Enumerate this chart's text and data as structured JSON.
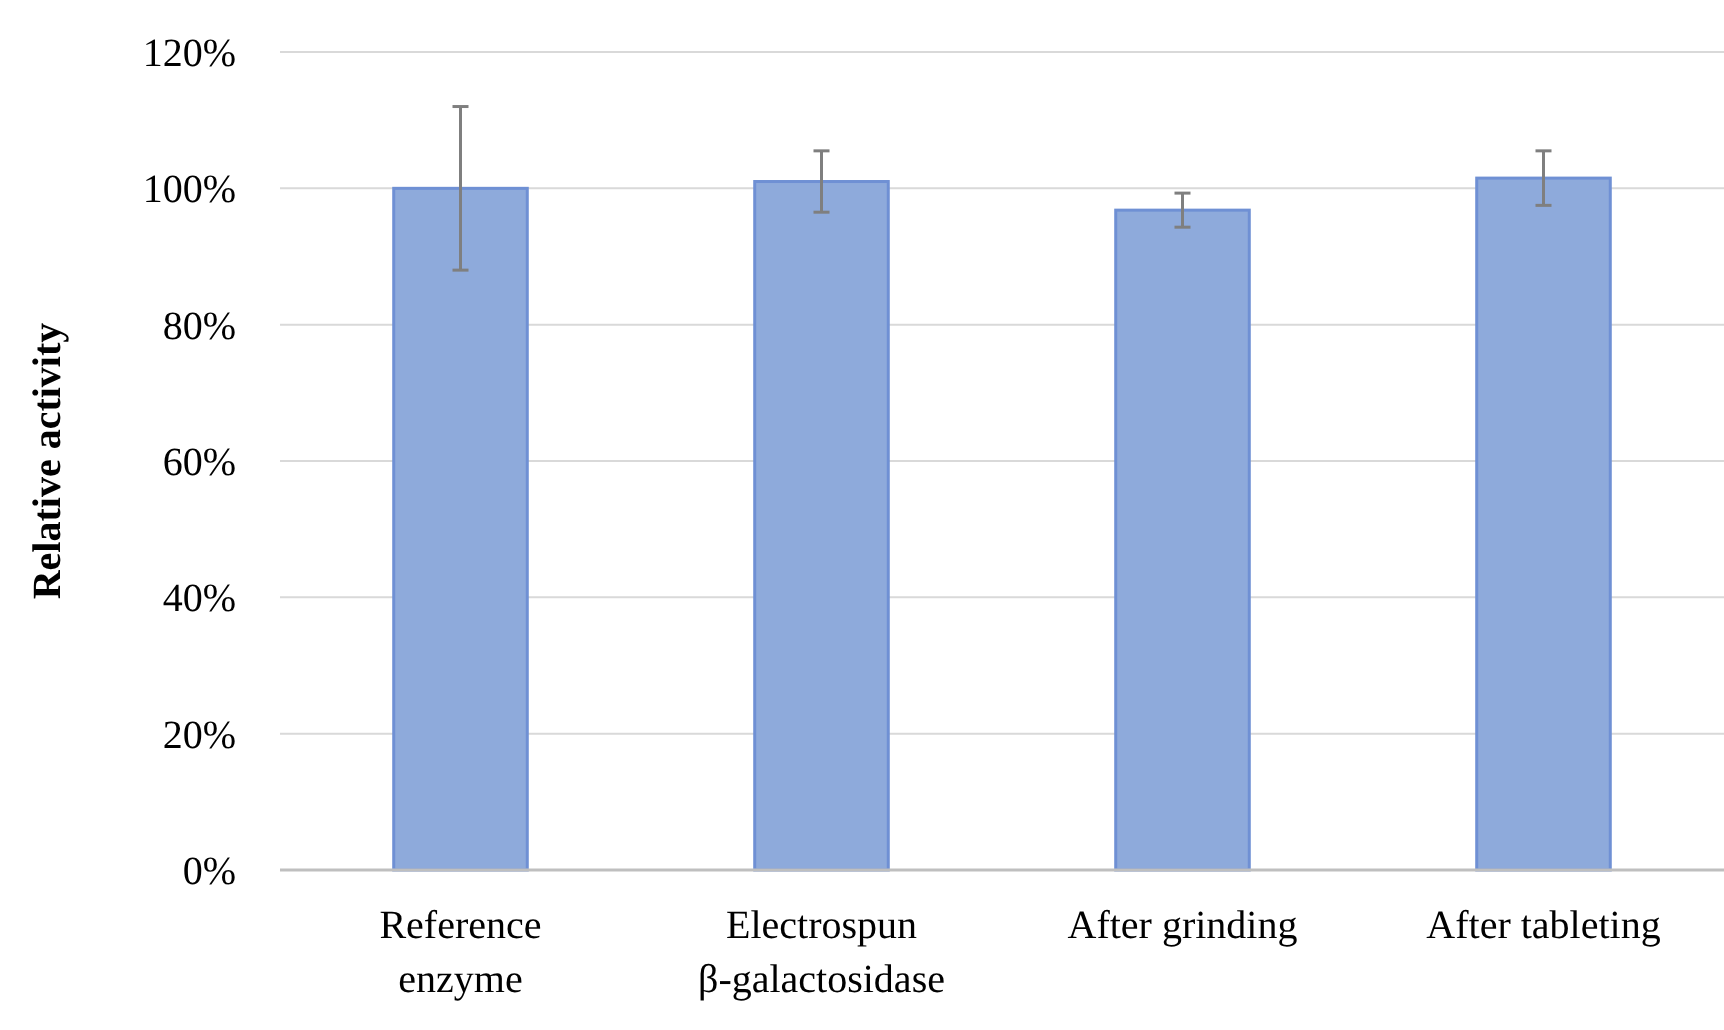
{
  "chart_data": {
    "type": "bar",
    "ylabel": "Relative activity",
    "categories": [
      "Reference\nenzyme",
      "Electrospun\nβ-galactosidase",
      "After grinding",
      "After tableting"
    ],
    "values": [
      100,
      101,
      96.8,
      101.5
    ],
    "errors": [
      12,
      4.5,
      2.5,
      4
    ],
    "color": "#8eaadb",
    "ylim": [
      0,
      120
    ],
    "yticks": [
      {
        "value": 0,
        "label": "0%"
      },
      {
        "value": 20,
        "label": "20%"
      },
      {
        "value": 40,
        "label": "40%"
      },
      {
        "value": 60,
        "label": "60%"
      },
      {
        "value": 80,
        "label": "80%"
      },
      {
        "value": 100,
        "label": "100%"
      },
      {
        "value": 120,
        "label": "120%"
      }
    ],
    "grid": "y"
  }
}
